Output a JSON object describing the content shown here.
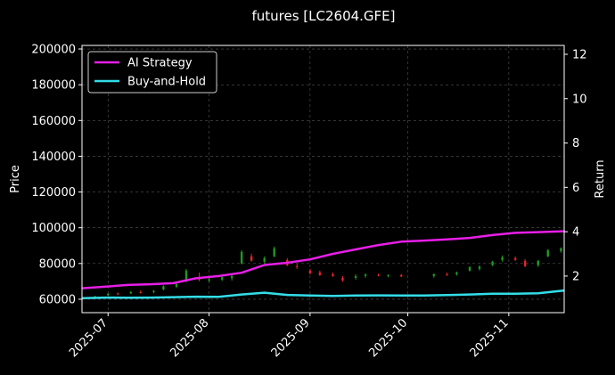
{
  "chart_data": {
    "type": "line",
    "title": "futures [LC2604.GFE]",
    "ylabel_left": "Price",
    "ylabel_right": "Return",
    "x_range": [
      "2025-06-23",
      "2025-11-18"
    ],
    "y_left_range": [
      52500,
      202000
    ],
    "y_right_range": [
      0.35,
      12.4
    ],
    "y_left_ticks": [
      60000,
      80000,
      100000,
      120000,
      140000,
      160000,
      180000,
      200000
    ],
    "y_left_tick_labels": [
      "60000",
      "80000",
      "100000",
      "120000",
      "140000",
      "160000",
      "180000",
      "200000"
    ],
    "y_right_ticks": [
      2,
      4,
      6,
      8,
      10,
      12
    ],
    "y_right_tick_labels": [
      "2",
      "4",
      "6",
      "8",
      "10",
      "12"
    ],
    "x_ticks": [
      "2025-07-01",
      "2025-08-01",
      "2025-09-01",
      "2025-10-01",
      "2025-11-01"
    ],
    "x_tick_labels": [
      "2025-07",
      "2025-08",
      "2025-09",
      "2025-10",
      "2025-11"
    ],
    "grid": true,
    "legend_position": "top-left",
    "colors": {
      "ai_strategy": "#e81ee8",
      "buy_and_hold": "#33dde8",
      "up_candle": "#1f9a1f",
      "down_candle": "#e8232a",
      "grid": "#555555",
      "axes": "#ffffff"
    },
    "series": [
      {
        "name": "AI Strategy",
        "axis": "right",
        "points": [
          [
            "2025-06-23",
            1.45
          ],
          [
            "2025-06-30",
            1.52
          ],
          [
            "2025-07-07",
            1.6
          ],
          [
            "2025-07-14",
            1.63
          ],
          [
            "2025-07-21",
            1.68
          ],
          [
            "2025-07-28",
            1.9
          ],
          [
            "2025-08-04",
            2.0
          ],
          [
            "2025-08-11",
            2.15
          ],
          [
            "2025-08-18",
            2.5
          ],
          [
            "2025-08-25",
            2.6
          ],
          [
            "2025-09-01",
            2.75
          ],
          [
            "2025-09-08",
            3.0
          ],
          [
            "2025-09-15",
            3.2
          ],
          [
            "2025-09-22",
            3.4
          ],
          [
            "2025-09-29",
            3.55
          ],
          [
            "2025-10-06",
            3.6
          ],
          [
            "2025-10-13",
            3.65
          ],
          [
            "2025-10-20",
            3.72
          ],
          [
            "2025-10-27",
            3.85
          ],
          [
            "2025-11-03",
            3.95
          ],
          [
            "2025-11-10",
            3.98
          ],
          [
            "2025-11-18",
            4.02
          ]
        ]
      },
      {
        "name": "Buy-and-Hold",
        "axis": "right",
        "points": [
          [
            "2025-06-23",
            1.0
          ],
          [
            "2025-06-30",
            1.03
          ],
          [
            "2025-07-07",
            1.02
          ],
          [
            "2025-07-14",
            1.03
          ],
          [
            "2025-07-21",
            1.05
          ],
          [
            "2025-07-28",
            1.07
          ],
          [
            "2025-08-04",
            1.06
          ],
          [
            "2025-08-11",
            1.17
          ],
          [
            "2025-08-18",
            1.25
          ],
          [
            "2025-08-25",
            1.15
          ],
          [
            "2025-09-01",
            1.12
          ],
          [
            "2025-09-08",
            1.1
          ],
          [
            "2025-09-15",
            1.12
          ],
          [
            "2025-09-22",
            1.13
          ],
          [
            "2025-09-29",
            1.12
          ],
          [
            "2025-10-06",
            1.12
          ],
          [
            "2025-10-13",
            1.14
          ],
          [
            "2025-10-20",
            1.17
          ],
          [
            "2025-10-27",
            1.2
          ],
          [
            "2025-11-03",
            1.2
          ],
          [
            "2025-11-10",
            1.22
          ],
          [
            "2025-11-18",
            1.35
          ]
        ]
      }
    ],
    "candles": [
      {
        "date": "2025-06-27",
        "open": 61200,
        "high": 62000,
        "low": 60500,
        "close": 61600
      },
      {
        "date": "2025-07-01",
        "open": 62200,
        "high": 63600,
        "low": 61800,
        "close": 63000
      },
      {
        "date": "2025-07-04",
        "open": 63200,
        "high": 63800,
        "low": 62300,
        "close": 62800
      },
      {
        "date": "2025-07-08",
        "open": 63300,
        "high": 64600,
        "low": 62900,
        "close": 64000
      },
      {
        "date": "2025-07-11",
        "open": 64000,
        "high": 65000,
        "low": 63200,
        "close": 63600
      },
      {
        "date": "2025-07-15",
        "open": 64000,
        "high": 65200,
        "low": 63400,
        "close": 64600
      },
      {
        "date": "2025-07-18",
        "open": 65500,
        "high": 67800,
        "low": 65000,
        "close": 67300
      },
      {
        "date": "2025-07-22",
        "open": 67000,
        "high": 69000,
        "low": 66300,
        "close": 68500
      },
      {
        "date": "2025-07-25",
        "open": 70000,
        "high": 77000,
        "low": 69500,
        "close": 76000
      },
      {
        "date": "2025-07-29",
        "open": 72000,
        "high": 75000,
        "low": 70000,
        "close": 71000
      },
      {
        "date": "2025-08-01",
        "open": 70500,
        "high": 72000,
        "low": 69500,
        "close": 71200
      },
      {
        "date": "2025-08-05",
        "open": 71000,
        "high": 73000,
        "low": 70200,
        "close": 72300
      },
      {
        "date": "2025-08-08",
        "open": 71800,
        "high": 74000,
        "low": 70500,
        "close": 73000
      },
      {
        "date": "2025-08-11",
        "open": 80000,
        "high": 87500,
        "low": 79500,
        "close": 86500
      },
      {
        "date": "2025-08-14",
        "open": 84000,
        "high": 85500,
        "low": 81000,
        "close": 81600
      },
      {
        "date": "2025-08-18",
        "open": 81000,
        "high": 84000,
        "low": 80200,
        "close": 83000
      },
      {
        "date": "2025-08-21",
        "open": 84000,
        "high": 89500,
        "low": 83500,
        "close": 88500
      },
      {
        "date": "2025-08-25",
        "open": 82000,
        "high": 83000,
        "low": 78500,
        "close": 79000
      },
      {
        "date": "2025-08-28",
        "open": 78500,
        "high": 80000,
        "low": 77000,
        "close": 78000
      },
      {
        "date": "2025-09-01",
        "open": 76000,
        "high": 77000,
        "low": 74000,
        "close": 74500
      },
      {
        "date": "2025-09-04",
        "open": 75000,
        "high": 76000,
        "low": 73000,
        "close": 73600
      },
      {
        "date": "2025-09-08",
        "open": 74000,
        "high": 75000,
        "low": 72500,
        "close": 73000
      },
      {
        "date": "2025-09-11",
        "open": 72000,
        "high": 73000,
        "low": 69800,
        "close": 70500
      },
      {
        "date": "2025-09-15",
        "open": 72000,
        "high": 74000,
        "low": 71000,
        "close": 73000
      },
      {
        "date": "2025-09-18",
        "open": 73000,
        "high": 74500,
        "low": 72000,
        "close": 73800
      },
      {
        "date": "2025-09-22",
        "open": 73600,
        "high": 74400,
        "low": 72800,
        "close": 73200
      },
      {
        "date": "2025-09-25",
        "open": 73000,
        "high": 74000,
        "low": 72200,
        "close": 73500
      },
      {
        "date": "2025-09-29",
        "open": 73500,
        "high": 74200,
        "low": 72300,
        "close": 72800
      },
      {
        "date": "2025-10-09",
        "open": 73000,
        "high": 74500,
        "low": 72000,
        "close": 74000
      },
      {
        "date": "2025-10-13",
        "open": 74000,
        "high": 75000,
        "low": 73000,
        "close": 73600
      },
      {
        "date": "2025-10-16",
        "open": 74000,
        "high": 75500,
        "low": 73200,
        "close": 75000
      },
      {
        "date": "2025-10-20",
        "open": 76000,
        "high": 78500,
        "low": 75500,
        "close": 78000
      },
      {
        "date": "2025-10-23",
        "open": 77000,
        "high": 79000,
        "low": 76000,
        "close": 78200
      },
      {
        "date": "2025-10-27",
        "open": 79000,
        "high": 81500,
        "low": 78500,
        "close": 81000
      },
      {
        "date": "2025-10-30",
        "open": 82000,
        "high": 84500,
        "low": 81000,
        "close": 83500
      },
      {
        "date": "2025-11-03",
        "open": 83000,
        "high": 84000,
        "low": 81500,
        "close": 82000
      },
      {
        "date": "2025-11-06",
        "open": 81500,
        "high": 82500,
        "low": 78000,
        "close": 78500
      },
      {
        "date": "2025-11-10",
        "open": 79000,
        "high": 82000,
        "low": 78000,
        "close": 81500
      },
      {
        "date": "2025-11-13",
        "open": 84000,
        "high": 88000,
        "low": 83500,
        "close": 87500
      },
      {
        "date": "2025-11-17",
        "open": 87000,
        "high": 89000,
        "low": 86000,
        "close": 88500
      }
    ]
  }
}
